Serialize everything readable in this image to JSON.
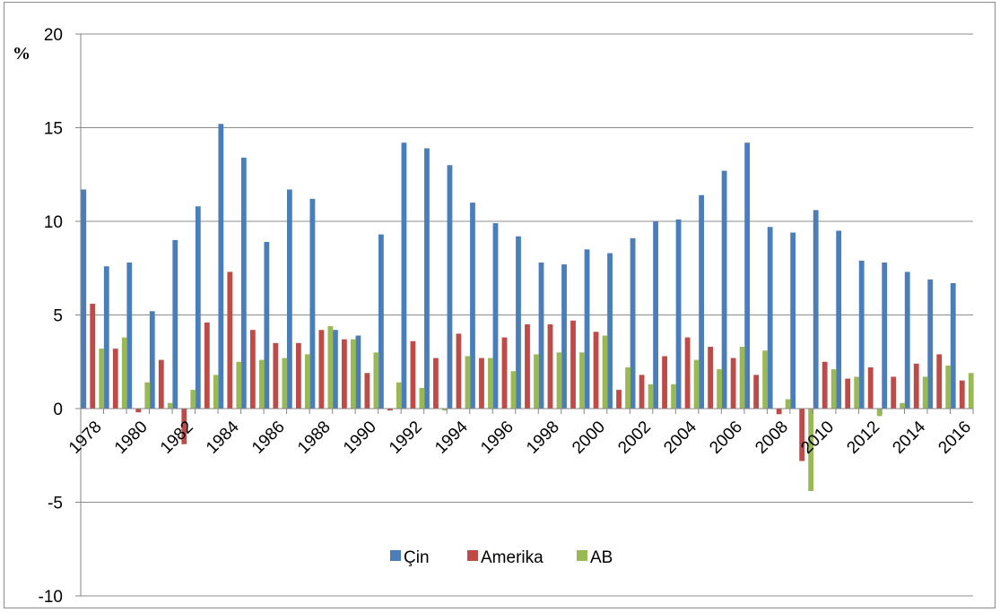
{
  "chart_data": {
    "type": "bar",
    "ylabel": "%",
    "ylim": [
      -10,
      20
    ],
    "yticks": [
      20,
      15,
      10,
      5,
      0,
      -5,
      -10
    ],
    "grid": true,
    "legend_position": "bottom",
    "categories": [
      "1978",
      "1979",
      "1980",
      "1981",
      "1982",
      "1983",
      "1984",
      "1985",
      "1986",
      "1987",
      "1988",
      "1989",
      "1990",
      "1991",
      "1992",
      "1993",
      "1994",
      "1995",
      "1996",
      "1997",
      "1998",
      "1999",
      "2000",
      "2001",
      "2002",
      "2003",
      "2004",
      "2005",
      "2006",
      "2007",
      "2008",
      "2009",
      "2010",
      "2011",
      "2012",
      "2013",
      "2014",
      "2015",
      "2016"
    ],
    "xtick_labels": [
      "1978",
      "",
      "1980",
      "",
      "1982",
      "",
      "1984",
      "",
      "1986",
      "",
      "1988",
      "",
      "1990",
      "",
      "1992",
      "",
      "1994",
      "",
      "1996",
      "",
      "1998",
      "",
      "2000",
      "",
      "2002",
      "",
      "2004",
      "",
      "2006",
      "",
      "2008",
      "",
      "2010",
      "",
      "2012",
      "",
      "2014",
      "",
      "2016"
    ],
    "series": [
      {
        "name": "Çin",
        "color": "#4a7ebb",
        "values": [
          11.7,
          7.6,
          7.8,
          5.2,
          9.0,
          10.8,
          15.2,
          13.4,
          8.9,
          11.7,
          11.2,
          4.2,
          3.9,
          9.3,
          14.2,
          13.9,
          13.0,
          11.0,
          9.9,
          9.2,
          7.8,
          7.7,
          8.5,
          8.3,
          9.1,
          10.0,
          10.1,
          11.4,
          12.7,
          14.2,
          9.7,
          9.4,
          10.6,
          9.5,
          7.9,
          7.8,
          7.3,
          6.9,
          6.7
        ]
      },
      {
        "name": "Amerika",
        "color": "#be4b48",
        "values": [
          5.6,
          3.2,
          -0.2,
          2.6,
          -1.9,
          4.6,
          7.3,
          4.2,
          3.5,
          3.5,
          4.2,
          3.7,
          1.9,
          -0.1,
          3.6,
          2.7,
          4.0,
          2.7,
          3.8,
          4.5,
          4.5,
          4.7,
          4.1,
          1.0,
          1.8,
          2.8,
          3.8,
          3.3,
          2.7,
          1.8,
          -0.3,
          -2.8,
          2.5,
          1.6,
          2.2,
          1.7,
          2.4,
          2.9,
          1.5
        ]
      },
      {
        "name": "AB",
        "color": "#98b954",
        "values": [
          3.2,
          3.8,
          1.4,
          0.3,
          1.0,
          1.8,
          2.5,
          2.6,
          2.7,
          2.9,
          4.4,
          3.7,
          3.0,
          1.4,
          1.1,
          -0.1,
          2.8,
          2.7,
          2.0,
          2.9,
          3.0,
          3.0,
          3.9,
          2.2,
          1.3,
          1.3,
          2.6,
          2.1,
          3.3,
          3.1,
          0.5,
          -4.4,
          2.1,
          1.7,
          -0.4,
          0.3,
          1.7,
          2.3,
          1.9
        ]
      }
    ]
  }
}
